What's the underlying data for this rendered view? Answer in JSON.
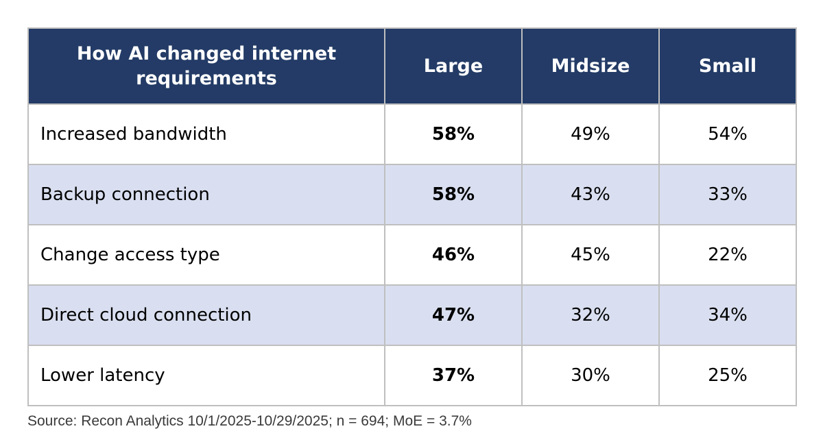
{
  "chart_data": {
    "type": "table",
    "title": "How AI changed internet requirements",
    "columns": [
      "Large",
      "Midsize",
      "Small"
    ],
    "categories": [
      "Increased bandwidth",
      "Backup connection",
      "Change access type",
      "Direct cloud connection",
      "Lower latency"
    ],
    "series": [
      {
        "name": "Large",
        "values": [
          58,
          58,
          46,
          47,
          37
        ]
      },
      {
        "name": "Midsize",
        "values": [
          49,
          43,
          45,
          32,
          30
        ]
      },
      {
        "name": "Small",
        "values": [
          54,
          33,
          22,
          34,
          25
        ]
      }
    ],
    "source": "Source: Recon Analytics 10/1/2025-10/29/2025; n = 694; MoE = 3.7%"
  },
  "table": {
    "header": {
      "title": "How AI changed internet requirements",
      "columns": [
        "Large",
        "Midsize",
        "Small"
      ]
    },
    "rows": [
      {
        "label": "Increased bandwidth",
        "large": "58%",
        "midsize": "49%",
        "small": "54%"
      },
      {
        "label": "Backup connection",
        "large": "58%",
        "midsize": "43%",
        "small": "33%"
      },
      {
        "label": "Change access type",
        "large": "46%",
        "midsize": "45%",
        "small": "22%"
      },
      {
        "label": "Direct cloud connection",
        "large": "47%",
        "midsize": "32%",
        "small": "34%"
      },
      {
        "label": "Lower latency",
        "large": "37%",
        "midsize": "30%",
        "small": "25%"
      }
    ]
  },
  "source": "Source: Recon Analytics 10/1/2025-10/29/2025; n = 694; MoE = 3.7%",
  "colors": {
    "header_bg": "#233B66",
    "header_text": "#FFFFFF",
    "row_alt_bg": "#D9DFF0",
    "row_bg": "#FFFFFF",
    "border": "#BFBFBF",
    "body_text": "#000000",
    "source_text": "#3A3A3A"
  }
}
